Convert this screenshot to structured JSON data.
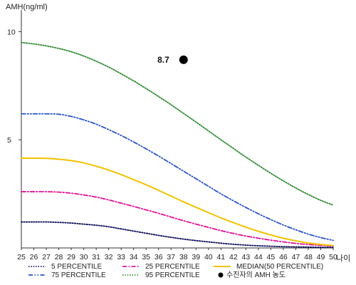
{
  "chart_data": {
    "type": "line",
    "ylabel": "AMH(ng/ml)",
    "xlabel": "나이",
    "xlim": [
      25,
      50
    ],
    "ylim": [
      0,
      11
    ],
    "y_ticks": [
      5,
      10
    ],
    "x": [
      25,
      26,
      27,
      28,
      29,
      30,
      31,
      32,
      33,
      34,
      35,
      36,
      37,
      38,
      39,
      40,
      41,
      42,
      43,
      44,
      45,
      46,
      47,
      48,
      49,
      50
    ],
    "x_tick_labels": [
      "25",
      "26",
      "27",
      "28",
      "29",
      "30",
      "31",
      "32",
      "33",
      "34",
      "35",
      "36",
      "37",
      "38",
      "39",
      "40",
      "41",
      "42",
      "43",
      "44",
      "45",
      "46",
      "47",
      "48",
      "49",
      "50"
    ],
    "grid": false,
    "legend_position": "bottom",
    "series": [
      {
        "name": "5 PERCENTILE",
        "color": "#0a0a5a",
        "dash": "dotted",
        "values": [
          1.2,
          1.2,
          1.2,
          1.18,
          1.15,
          1.1,
          1.05,
          0.98,
          0.88,
          0.78,
          0.68,
          0.58,
          0.49,
          0.41,
          0.34,
          0.28,
          0.22,
          0.17,
          0.13,
          0.1,
          0.08,
          0.06,
          0.05,
          0.04,
          0.03,
          0.03
        ]
      },
      {
        "name": "25 PERCENTILE",
        "color": "#e0109a",
        "dash": "dashdot",
        "values": [
          2.6,
          2.6,
          2.6,
          2.58,
          2.53,
          2.45,
          2.35,
          2.22,
          2.07,
          1.92,
          1.76,
          1.6,
          1.43,
          1.26,
          1.1,
          0.95,
          0.8,
          0.67,
          0.55,
          0.45,
          0.36,
          0.28,
          0.21,
          0.16,
          0.12,
          0.09
        ]
      },
      {
        "name": "MEDIAN(50 PERCENTILE)",
        "color": "#f2c200",
        "dash": "solid",
        "values": [
          4.15,
          4.15,
          4.14,
          4.1,
          4.04,
          3.93,
          3.78,
          3.6,
          3.39,
          3.16,
          2.92,
          2.66,
          2.4,
          2.13,
          1.88,
          1.63,
          1.39,
          1.17,
          0.96,
          0.77,
          0.6,
          0.45,
          0.33,
          0.23,
          0.16,
          0.11
        ]
      },
      {
        "name": "75 PERCENTILE",
        "color": "#2a55c8",
        "dash": "dashdotdot",
        "values": [
          6.2,
          6.2,
          6.2,
          6.18,
          6.08,
          5.92,
          5.72,
          5.47,
          5.2,
          4.9,
          4.58,
          4.25,
          3.9,
          3.55,
          3.2,
          2.85,
          2.5,
          2.18,
          1.87,
          1.58,
          1.31,
          1.06,
          0.84,
          0.64,
          0.48,
          0.35
        ]
      },
      {
        "name": "95 PERCENTILE",
        "color": "#2e8b2e",
        "dash": "dotted",
        "values": [
          9.5,
          9.43,
          9.34,
          9.22,
          9.07,
          8.87,
          8.63,
          8.36,
          8.05,
          7.72,
          7.37,
          7.0,
          6.62,
          6.22,
          5.82,
          5.41,
          5.0,
          4.6,
          4.2,
          3.82,
          3.45,
          3.1,
          2.77,
          2.47,
          2.2,
          1.98
        ]
      }
    ],
    "point": {
      "name": "수진자의 AMH 농도",
      "x": 38,
      "y": 8.7,
      "label": "8.7",
      "color": "#000000"
    }
  }
}
